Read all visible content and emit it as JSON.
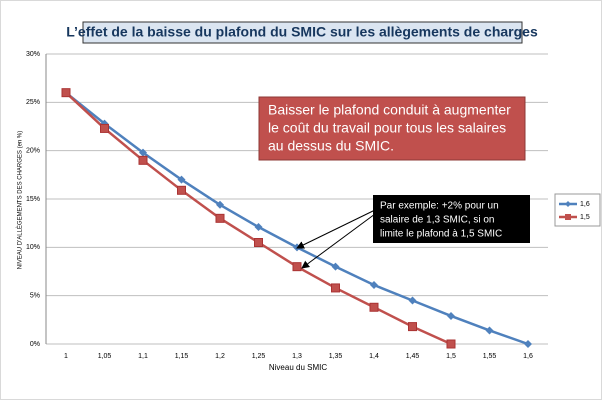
{
  "chart_data": {
    "type": "line",
    "title": "L’effet de la baisse du plafond du SMIC sur les allègements de charges",
    "x_label": "Niveau du SMIC",
    "y_label": "NIVEAU D'ALLÈGEMENTS DES CHARGES (en %)",
    "categories": [
      "1",
      "1,05",
      "1,1",
      "1,15",
      "1,2",
      "1,25",
      "1,3",
      "1,35",
      "1,4",
      "1,45",
      "1,5",
      "1,55",
      "1,6"
    ],
    "series": [
      {
        "name": "1,6",
        "color": "#4f81bd",
        "marker": "diamond",
        "values": [
          26,
          22.8,
          19.8,
          17,
          14.4,
          12.1,
          10,
          8,
          6.1,
          4.5,
          2.9,
          1.4,
          0
        ]
      },
      {
        "name": "1,5",
        "color": "#c0504d",
        "marker": "square",
        "values": [
          26,
          22.3,
          19,
          15.9,
          13,
          10.5,
          8,
          5.8,
          3.8,
          1.8,
          0,
          null,
          null
        ]
      }
    ],
    "ylim": [
      0,
      30
    ],
    "yticks": [
      {
        "value": 0,
        "label": "0%"
      },
      {
        "value": 5,
        "label": "5%"
      },
      {
        "value": 10,
        "label": "10%"
      },
      {
        "value": 15,
        "label": "15%"
      },
      {
        "value": 20,
        "label": "20%"
      },
      {
        "value": 25,
        "label": "25%"
      },
      {
        "value": 30,
        "label": "30%"
      }
    ],
    "grid": true,
    "legend": "right",
    "annotations": [
      {
        "lines": [
          "Baisser le plafond conduit à augmenter",
          "le coût du travail pour tous les salaires",
          "au dessus du SMIC."
        ]
      },
      {
        "lines": [
          "Par exemple: +2% pour un",
          "salaire de 1,3 SMIC, si on",
          "limite le plafond à 1,5 SMIC"
        ]
      }
    ]
  }
}
